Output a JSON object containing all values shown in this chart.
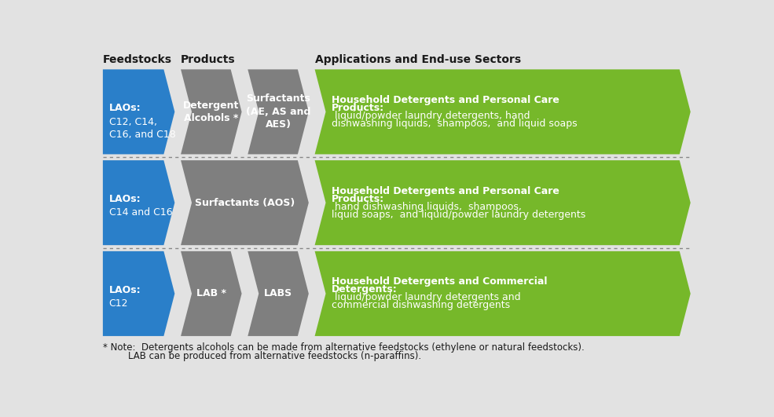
{
  "bg_color": "#e2e2e2",
  "blue_color": "#2a7fc9",
  "gray_color": "#7f7f7f",
  "green_color": "#76b82a",
  "white_text": "#ffffff",
  "dark_text": "#1a1a1a",
  "header_fontsize": 10,
  "body_fontsize": 9,
  "note_fontsize": 8.5,
  "headers": [
    "Feedstocks",
    "Products",
    "Applications and End-use Sectors"
  ],
  "rows": [
    {
      "blue_label_bold": "LAOs:",
      "blue_label_normal": "C12, C14,\nC16, and C18",
      "gray_shapes": [
        "Detergent\nAlcohols *",
        "Surfactants\n(AE, AS and\nAES)"
      ],
      "green_bold": "Household Detergents and Personal Care\nProducts:",
      "green_normal": " liquid/powder laundry detergents, hand\ndishwashing liquids,  shampoos,  and liquid soaps"
    },
    {
      "blue_label_bold": "LAOs:",
      "blue_label_normal": "C14 and C16",
      "gray_shapes": [
        "Surfactants (AOS)"
      ],
      "green_bold": "Household Detergents and Personal Care\nProducts:",
      "green_normal": " hand dishwashing liquids,  shampoos,\nliquid soaps,  and liquid/powder laundry detergents"
    },
    {
      "blue_label_bold": "LAOs:",
      "blue_label_normal": "C12",
      "gray_shapes": [
        "LAB *",
        "LABS"
      ],
      "green_bold": "Household Detergents and Commercial\nDetergents:",
      "green_normal": " liquid/powder laundry detergents and\ncommercial dishwashing detergents"
    }
  ],
  "note_star": "* Note:",
  "note_line1": "Detergents alcohols can be made from alternative feedstocks (ethylene or natural feedstocks).",
  "note_line2": "LAB can be produced from alternative feedstocks (n-paraffins).",
  "row_layout": [
    {
      "gray_count": 2
    },
    {
      "gray_count": 1
    },
    {
      "gray_count": 2
    }
  ]
}
